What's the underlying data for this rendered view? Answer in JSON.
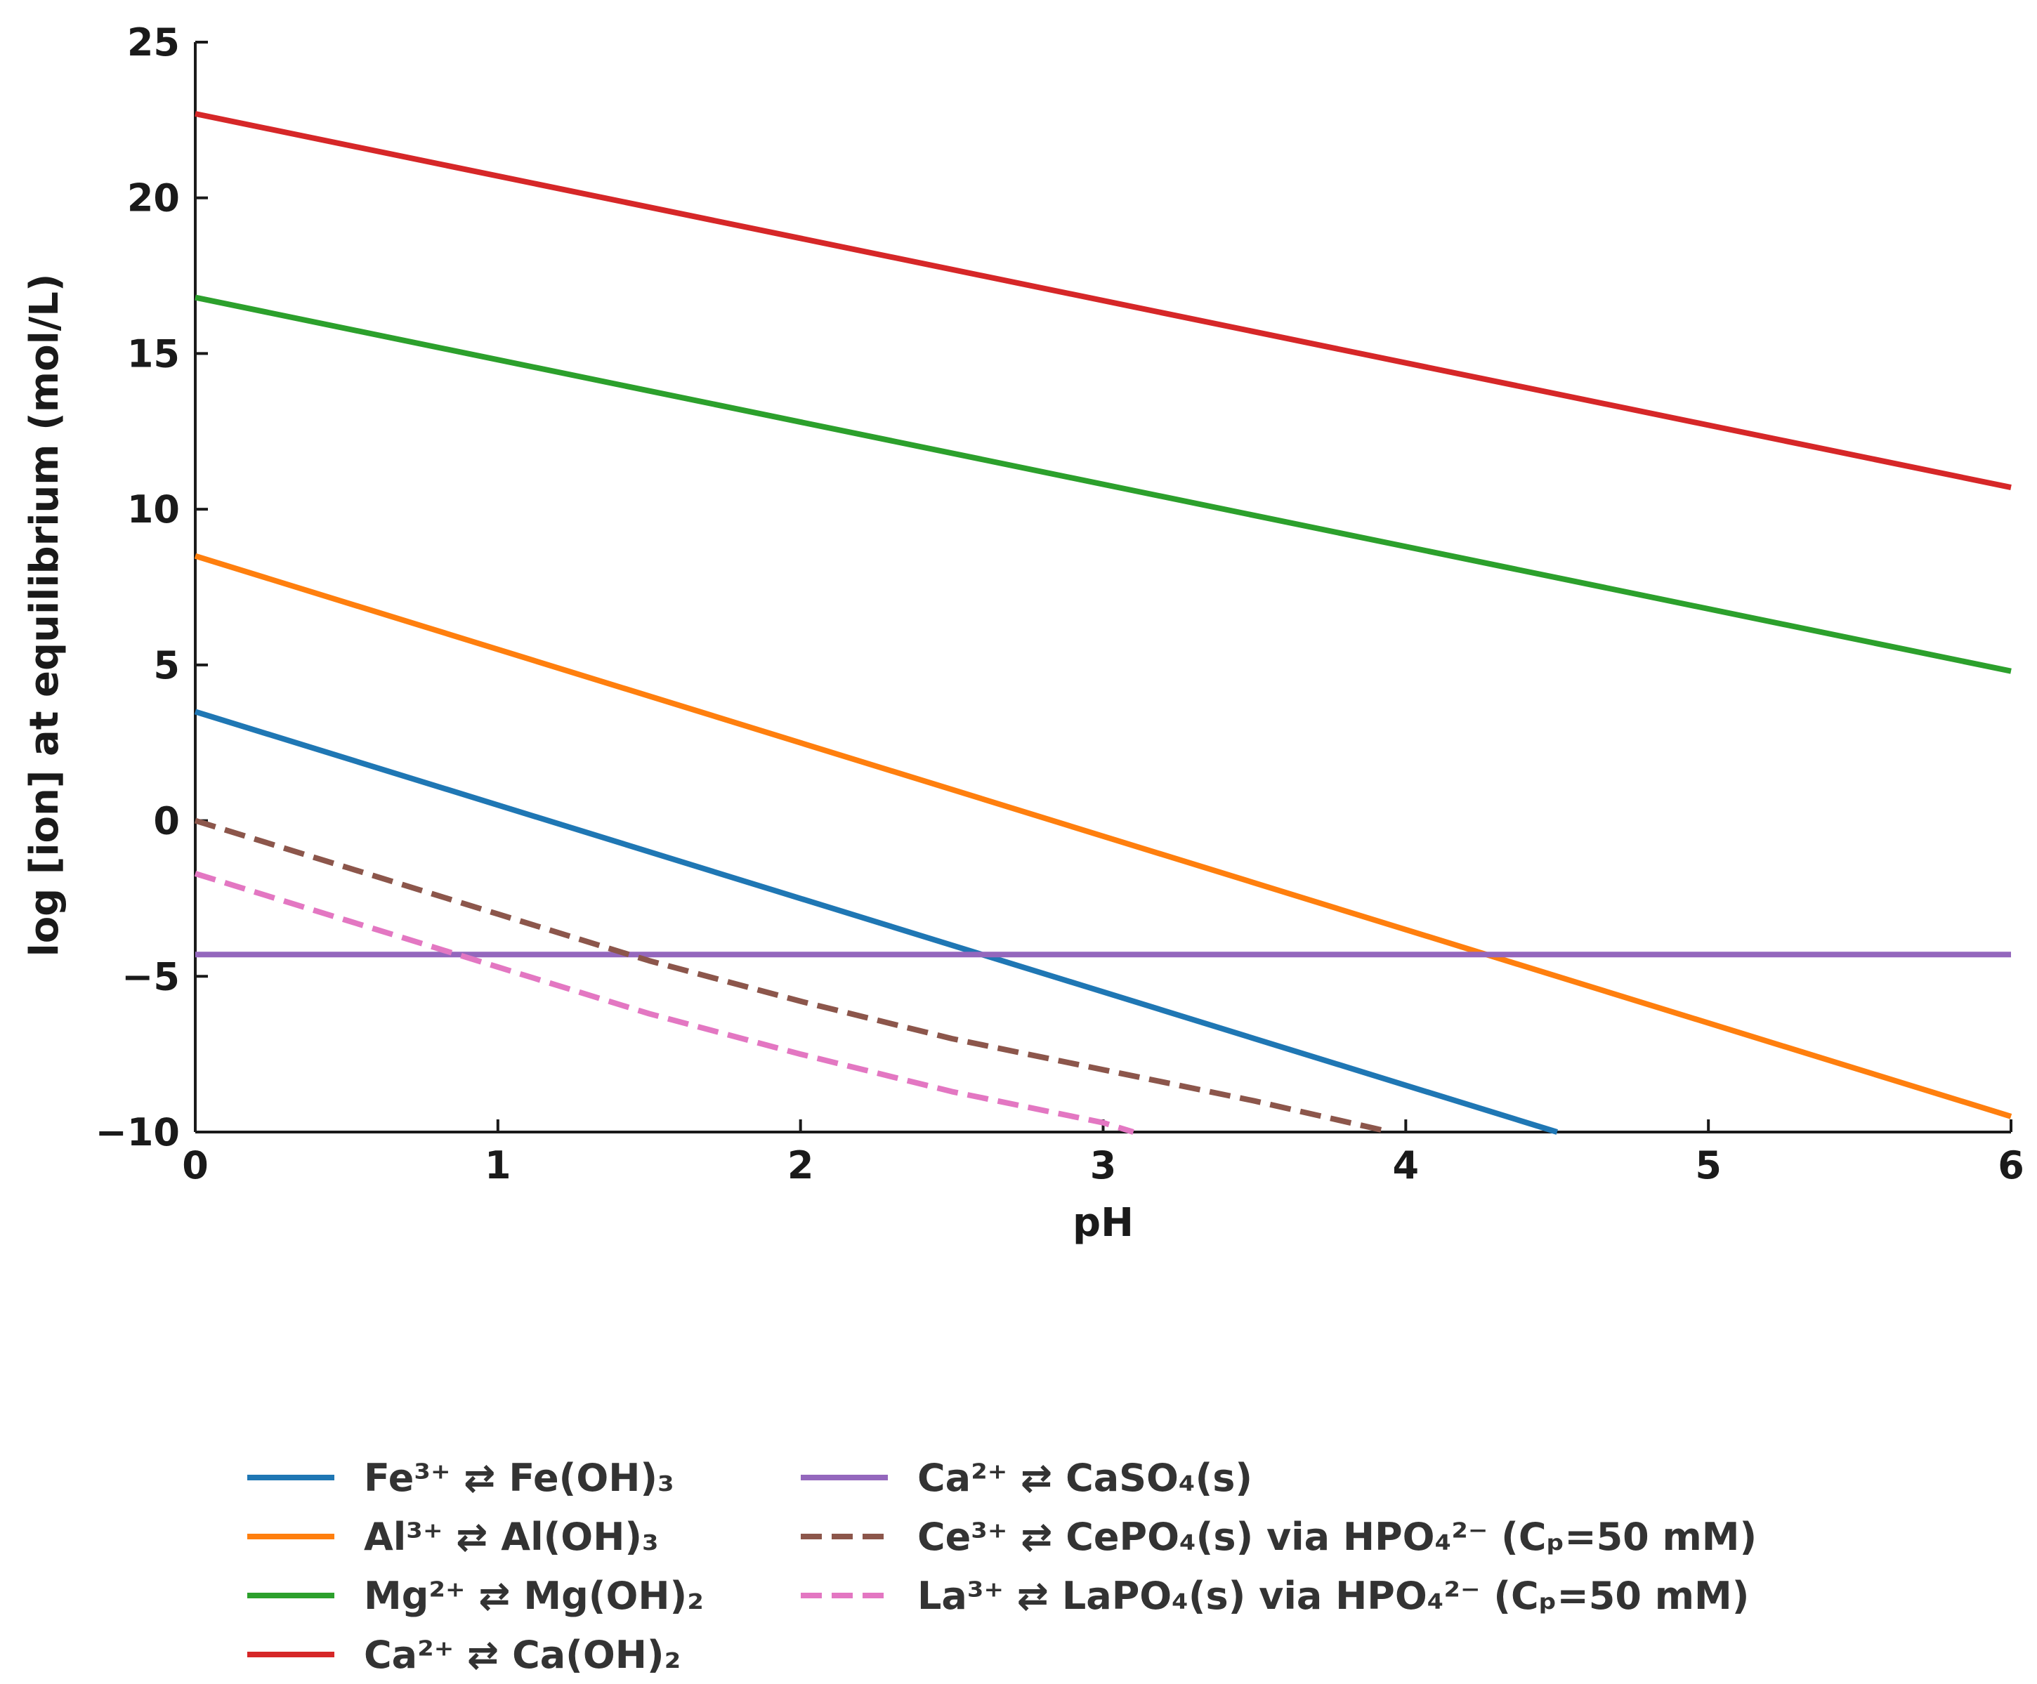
{
  "chart_data": {
    "type": "line",
    "title": "",
    "xlabel": "pH",
    "ylabel": "log [ion] at equilibrium (mol/L)",
    "xlim": [
      0,
      6
    ],
    "ylim": [
      -10,
      25
    ],
    "xticks": [
      0,
      1,
      2,
      3,
      4,
      5,
      6
    ],
    "xtick_labels": [
      "0",
      "1",
      "2",
      "3",
      "4",
      "5",
      "6"
    ],
    "yticks": [
      -10,
      -5,
      0,
      5,
      10,
      15,
      20,
      25
    ],
    "ytick_labels": [
      "−10",
      "−5",
      "0",
      "5",
      "10",
      "15",
      "20",
      "25"
    ],
    "grid": false,
    "legend_position": "below",
    "series": [
      {
        "name": "Fe³⁺ ⇄ Fe(OH)₃",
        "color": "#1f77b4",
        "style": "solid",
        "x": [
          0,
          4.5
        ],
        "y": [
          3.5,
          -10
        ]
      },
      {
        "name": "Al³⁺ ⇄ Al(OH)₃",
        "color": "#ff7f0e",
        "style": "solid",
        "x": [
          0,
          6
        ],
        "y": [
          8.5,
          -9.5
        ]
      },
      {
        "name": "Mg²⁺ ⇄ Mg(OH)₂",
        "color": "#2ca02c",
        "style": "solid",
        "x": [
          0,
          6
        ],
        "y": [
          16.8,
          4.8
        ]
      },
      {
        "name": "Ca²⁺ ⇄ Ca(OH)₂",
        "color": "#d62728",
        "style": "solid",
        "x": [
          0,
          6
        ],
        "y": [
          22.7,
          10.7
        ]
      },
      {
        "name": "Ca²⁺ ⇄ CaSO₄(s)",
        "color": "#9467bd",
        "style": "solid",
        "x": [
          0,
          6
        ],
        "y": [
          -4.3,
          -4.3
        ]
      },
      {
        "name": "Ce³⁺ ⇄ CePO₄(s) via HPO₄²⁻ (Cₚ=50 mM)",
        "color": "#8c564b",
        "style": "dashed",
        "x": [
          0,
          0.5,
          1.0,
          1.5,
          2.0,
          2.5,
          3.0,
          3.5,
          3.95
        ],
        "y": [
          0.0,
          -1.5,
          -3.0,
          -4.5,
          -5.8,
          -7.0,
          -8.0,
          -9.0,
          -10.0
        ]
      },
      {
        "name": "La³⁺ ⇄ LaPO₄(s) via HPO₄²⁻ (Cₚ=50 mM)",
        "color": "#e377c2",
        "style": "dashed",
        "x": [
          0,
          0.5,
          1.0,
          1.5,
          2.0,
          2.5,
          3.0,
          3.1
        ],
        "y": [
          -1.7,
          -3.2,
          -4.7,
          -6.2,
          -7.5,
          -8.7,
          -9.7,
          -10.0
        ]
      }
    ]
  }
}
